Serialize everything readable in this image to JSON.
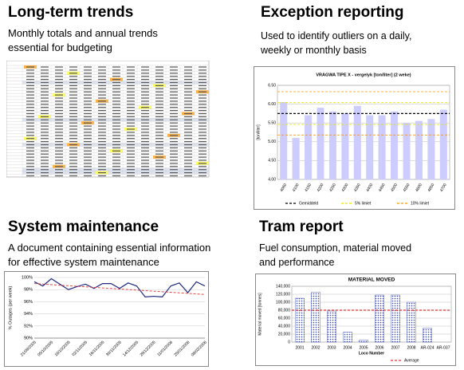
{
  "sections": [
    {
      "title": "Long-term trends",
      "description": [
        "Monthly totals and annual trends",
        "essential for budgeting"
      ]
    },
    {
      "title": "Exception reporting",
      "description": [
        "Used to identify outliers on a daily,",
        "weekly or monthly basis"
      ],
      "chart": {
        "type": "bar",
        "title": "VRAGWA TIPE X - vergelyk [ton/liter] (2 weke)",
        "y_label": "[ton/liter]",
        "categories": [
          "4060",
          "4100",
          "4150",
          "4200",
          "4250",
          "4300",
          "4350",
          "4400",
          "4450",
          "4500",
          "4550",
          "4600",
          "4650",
          "4700"
        ],
        "values": [
          6.05,
          5.1,
          5.7,
          5.9,
          5.8,
          5.75,
          5.95,
          5.7,
          5.7,
          5.8,
          5.5,
          5.55,
          5.6,
          5.85
        ],
        "color": "#ccccff",
        "ylim": [
          4.0,
          6.5
        ],
        "yticks": [
          {
            "value": 4.0,
            "label": "4.00"
          },
          {
            "value": 4.5,
            "label": "4.50"
          },
          {
            "value": 5.0,
            "label": "5.00"
          },
          {
            "value": 5.5,
            "label": "5.50"
          },
          {
            "value": 6.0,
            "label": "6.00"
          },
          {
            "value": 6.5,
            "label": "6.50"
          }
        ],
        "reference_lines": [
          {
            "name": "Gemiddeld",
            "color": "#000000",
            "values": [
              5.75
            ]
          },
          {
            "name": "5% limiet",
            "color": "#e6e600",
            "values": [
              5.46,
              6.04
            ]
          },
          {
            "name": "10% limiet",
            "color": "#ff9900",
            "values": [
              5.18,
              6.33
            ]
          }
        ]
      }
    },
    {
      "title": "System maintenance",
      "description": [
        "A document containing essential information",
        "for effective system maintenance"
      ],
      "chart": {
        "type": "line",
        "y_label": "% Outages (per week)",
        "categories": [
          "21/09/2005",
          null,
          "05/10/2005",
          null,
          "19/10/2005",
          null,
          "02/11/2005",
          null,
          "16/11/2005",
          null,
          "30/11/2005",
          null,
          "14/12/2005",
          null,
          "28/12/2005",
          null,
          "11/01/2006",
          null,
          "25/01/2006",
          null,
          "08/02/2006"
        ],
        "values": [
          99.3,
          98.6,
          99.8,
          98.9,
          98.0,
          98.5,
          98.9,
          98.2,
          99.0,
          99.0,
          98.2,
          99.1,
          98.6,
          96.8,
          96.9,
          96.8,
          98.6,
          99.1,
          97.5,
          99.3,
          98.6
        ],
        "color": "#1f2a80",
        "trend": {
          "color": "#e03030",
          "values": [
            99.0,
            97.2
          ]
        },
        "ylim": [
          90,
          100
        ],
        "yticks": [
          {
            "value": 90,
            "label": "90%"
          },
          {
            "value": 92,
            "label": "92%"
          },
          {
            "value": 94,
            "label": "94%"
          },
          {
            "value": 96,
            "label": "96%"
          },
          {
            "value": 98,
            "label": "98%"
          },
          {
            "value": 100,
            "label": "100%"
          }
        ]
      }
    },
    {
      "title": "Tram report",
      "description": [
        "Fuel consumption, material moved",
        "and performance"
      ],
      "chart": {
        "type": "bar",
        "title": "MATERIAL MOVED",
        "y_label": "Material moved [tonnes]",
        "x_label": "Loco Number",
        "categories": [
          "2001",
          "2002",
          "2003",
          "2004",
          "2005",
          "2006",
          "2007",
          "2008",
          "AR-024",
          "AR-037"
        ],
        "values": [
          110000,
          125000,
          78000,
          25000,
          5000,
          118000,
          118000,
          100000,
          35000,
          0
        ],
        "color": "#3344aa",
        "ylim": [
          0,
          140000
        ],
        "yticks": [
          0,
          {
            "value": 20000,
            "label": "20,000"
          },
          {
            "value": 40000,
            "label": "40,000"
          },
          {
            "value": 60000,
            "label": "60,000"
          },
          {
            "value": 80000,
            "label": "80,000"
          },
          {
            "value": 100000,
            "label": "100,000"
          },
          {
            "value": 120000,
            "label": "120,000"
          },
          {
            "value": 140000,
            "label": "140,000"
          }
        ],
        "reference_lines": [
          {
            "name": "Average",
            "color": "#e03030",
            "values": [
              80000
            ]
          }
        ]
      }
    }
  ]
}
